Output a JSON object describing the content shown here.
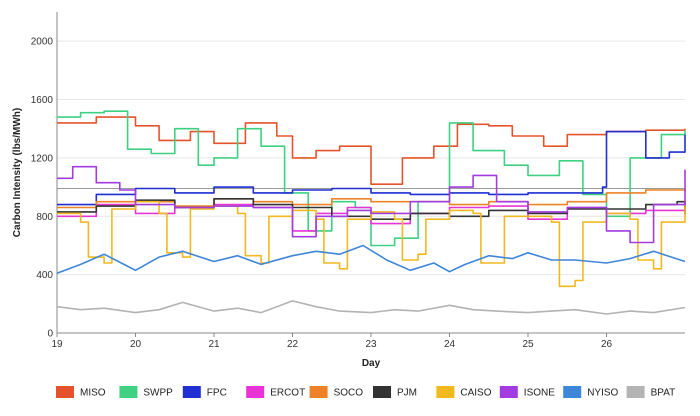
{
  "chart_data": {
    "type": "line",
    "title": "",
    "xlabel": "Day",
    "ylabel": "Carbon Intensity (lbs/MWh)",
    "xlim": [
      19,
      27
    ],
    "ylim": [
      0,
      2200
    ],
    "x_ticks": [
      "19",
      "20",
      "21",
      "22",
      "23",
      "24",
      "25",
      "26"
    ],
    "y_ticks": [
      "0",
      "400",
      "800",
      "1200",
      "1600",
      "2000"
    ],
    "grid": "horizontal",
    "legend_position": "bottom",
    "reference_line": {
      "value": 990,
      "color": "#999999"
    },
    "series": [
      {
        "name": "MISO",
        "color": "#e5532d",
        "shape": "step",
        "points": [
          [
            19.0,
            1440
          ],
          [
            19.5,
            1480
          ],
          [
            20.0,
            1420
          ],
          [
            20.3,
            1320
          ],
          [
            20.7,
            1380
          ],
          [
            21.0,
            1300
          ],
          [
            21.4,
            1440
          ],
          [
            21.8,
            1350
          ],
          [
            22.0,
            1200
          ],
          [
            22.3,
            1250
          ],
          [
            22.6,
            1280
          ],
          [
            23.0,
            1020
          ],
          [
            23.4,
            1200
          ],
          [
            23.8,
            1280
          ],
          [
            24.1,
            1430
          ],
          [
            24.5,
            1420
          ],
          [
            24.8,
            1350
          ],
          [
            25.2,
            1280
          ],
          [
            25.5,
            1360
          ],
          [
            26.0,
            1380
          ],
          [
            26.5,
            1390
          ],
          [
            27.0,
            1400
          ]
        ]
      },
      {
        "name": "SWPP",
        "color": "#3dd181",
        "shape": "step",
        "points": [
          [
            19.0,
            1480
          ],
          [
            19.3,
            1510
          ],
          [
            19.6,
            1520
          ],
          [
            19.9,
            1260
          ],
          [
            20.2,
            1230
          ],
          [
            20.5,
            1400
          ],
          [
            20.8,
            1150
          ],
          [
            21.0,
            1200
          ],
          [
            21.3,
            1400
          ],
          [
            21.6,
            1280
          ],
          [
            21.9,
            960
          ],
          [
            22.2,
            700
          ],
          [
            22.5,
            900
          ],
          [
            22.8,
            860
          ],
          [
            23.0,
            600
          ],
          [
            23.3,
            650
          ],
          [
            23.6,
            900
          ],
          [
            24.0,
            1440
          ],
          [
            24.3,
            1250
          ],
          [
            24.7,
            1150
          ],
          [
            25.0,
            1080
          ],
          [
            25.4,
            1180
          ],
          [
            25.7,
            950
          ],
          [
            26.0,
            800
          ],
          [
            26.3,
            1200
          ],
          [
            26.7,
            1360
          ],
          [
            27.0,
            1390
          ]
        ]
      },
      {
        "name": "FPC",
        "color": "#1f2fd0",
        "shape": "step",
        "points": [
          [
            19.0,
            880
          ],
          [
            19.5,
            950
          ],
          [
            20.0,
            990
          ],
          [
            20.5,
            960
          ],
          [
            21.0,
            1000
          ],
          [
            21.5,
            960
          ],
          [
            22.0,
            980
          ],
          [
            22.5,
            990
          ],
          [
            23.0,
            960
          ],
          [
            23.5,
            950
          ],
          [
            24.0,
            960
          ],
          [
            24.5,
            950
          ],
          [
            25.0,
            960
          ],
          [
            25.5,
            960
          ],
          [
            25.95,
            1000
          ],
          [
            26.0,
            1380
          ],
          [
            26.3,
            1380
          ],
          [
            26.5,
            1200
          ],
          [
            26.8,
            1240
          ],
          [
            27.0,
            1360
          ]
        ]
      },
      {
        "name": "ERCOT",
        "color": "#e834d6",
        "shape": "step",
        "points": [
          [
            19.0,
            800
          ],
          [
            19.5,
            880
          ],
          [
            20.0,
            820
          ],
          [
            20.5,
            860
          ],
          [
            21.0,
            880
          ],
          [
            21.5,
            860
          ],
          [
            22.0,
            700
          ],
          [
            22.3,
            820
          ],
          [
            22.7,
            860
          ],
          [
            23.0,
            750
          ],
          [
            23.5,
            820
          ],
          [
            24.0,
            860
          ],
          [
            24.5,
            870
          ],
          [
            25.0,
            780
          ],
          [
            25.5,
            860
          ],
          [
            26.0,
            820
          ],
          [
            26.5,
            840
          ],
          [
            27.0,
            900
          ]
        ]
      },
      {
        "name": "SOCO",
        "color": "#ed8226",
        "shape": "step",
        "points": [
          [
            19.0,
            860
          ],
          [
            19.5,
            900
          ],
          [
            20.0,
            900
          ],
          [
            20.5,
            870
          ],
          [
            21.0,
            920
          ],
          [
            21.5,
            900
          ],
          [
            22.0,
            880
          ],
          [
            22.5,
            920
          ],
          [
            23.0,
            900
          ],
          [
            23.5,
            900
          ],
          [
            24.0,
            880
          ],
          [
            24.5,
            900
          ],
          [
            25.0,
            880
          ],
          [
            25.5,
            900
          ],
          [
            26.0,
            960
          ],
          [
            26.5,
            980
          ],
          [
            27.0,
            970
          ]
        ]
      },
      {
        "name": "PJM",
        "color": "#333333",
        "shape": "step",
        "points": [
          [
            19.0,
            830
          ],
          [
            19.5,
            870
          ],
          [
            20.0,
            910
          ],
          [
            20.5,
            860
          ],
          [
            21.0,
            920
          ],
          [
            21.5,
            880
          ],
          [
            22.0,
            860
          ],
          [
            22.5,
            800
          ],
          [
            23.0,
            780
          ],
          [
            23.5,
            820
          ],
          [
            24.0,
            800
          ],
          [
            24.5,
            840
          ],
          [
            25.0,
            820
          ],
          [
            25.5,
            850
          ],
          [
            26.0,
            850
          ],
          [
            26.5,
            880
          ],
          [
            26.9,
            900
          ],
          [
            27.0,
            810
          ]
        ]
      },
      {
        "name": "CAISO",
        "color": "#f2b820",
        "shape": "step",
        "points": [
          [
            19.0,
            820
          ],
          [
            19.3,
            760
          ],
          [
            19.4,
            520
          ],
          [
            19.6,
            480
          ],
          [
            19.7,
            850
          ],
          [
            20.0,
            900
          ],
          [
            20.3,
            820
          ],
          [
            20.4,
            550
          ],
          [
            20.6,
            520
          ],
          [
            20.7,
            850
          ],
          [
            21.0,
            870
          ],
          [
            21.3,
            820
          ],
          [
            21.4,
            530
          ],
          [
            21.6,
            480
          ],
          [
            21.7,
            800
          ],
          [
            22.0,
            840
          ],
          [
            22.3,
            780
          ],
          [
            22.4,
            480
          ],
          [
            22.6,
            440
          ],
          [
            22.7,
            780
          ],
          [
            23.0,
            830
          ],
          [
            23.3,
            780
          ],
          [
            23.4,
            500
          ],
          [
            23.6,
            540
          ],
          [
            23.7,
            780
          ],
          [
            24.0,
            840
          ],
          [
            24.3,
            820
          ],
          [
            24.4,
            480
          ],
          [
            24.6,
            480
          ],
          [
            24.7,
            800
          ],
          [
            25.0,
            800
          ],
          [
            25.3,
            760
          ],
          [
            25.4,
            320
          ],
          [
            25.6,
            360
          ],
          [
            25.7,
            760
          ],
          [
            26.0,
            820
          ],
          [
            26.3,
            780
          ],
          [
            26.4,
            500
          ],
          [
            26.6,
            440
          ],
          [
            26.7,
            760
          ],
          [
            27.0,
            880
          ]
        ]
      },
      {
        "name": "ISONE",
        "color": "#a23ce0",
        "shape": "step",
        "points": [
          [
            19.0,
            1060
          ],
          [
            19.2,
            1140
          ],
          [
            19.5,
            1030
          ],
          [
            19.8,
            980
          ],
          [
            20.0,
            880
          ],
          [
            20.5,
            860
          ],
          [
            21.0,
            870
          ],
          [
            21.5,
            860
          ],
          [
            22.0,
            660
          ],
          [
            22.3,
            800
          ],
          [
            22.7,
            840
          ],
          [
            23.0,
            820
          ],
          [
            23.5,
            900
          ],
          [
            24.0,
            1000
          ],
          [
            24.3,
            1080
          ],
          [
            24.6,
            900
          ],
          [
            25.0,
            830
          ],
          [
            25.5,
            860
          ],
          [
            26.0,
            700
          ],
          [
            26.3,
            620
          ],
          [
            26.6,
            880
          ],
          [
            27.0,
            1120
          ]
        ]
      },
      {
        "name": "NYISO",
        "color": "#3f86d9",
        "shape": "line",
        "points": [
          [
            19.0,
            410
          ],
          [
            19.3,
            470
          ],
          [
            19.6,
            540
          ],
          [
            20.0,
            430
          ],
          [
            20.3,
            520
          ],
          [
            20.6,
            560
          ],
          [
            21.0,
            490
          ],
          [
            21.3,
            530
          ],
          [
            21.6,
            470
          ],
          [
            22.0,
            530
          ],
          [
            22.3,
            560
          ],
          [
            22.6,
            540
          ],
          [
            22.9,
            600
          ],
          [
            23.2,
            500
          ],
          [
            23.5,
            430
          ],
          [
            23.8,
            480
          ],
          [
            24.0,
            420
          ],
          [
            24.2,
            470
          ],
          [
            24.5,
            530
          ],
          [
            24.8,
            510
          ],
          [
            25.0,
            550
          ],
          [
            25.3,
            500
          ],
          [
            25.6,
            500
          ],
          [
            26.0,
            480
          ],
          [
            26.3,
            510
          ],
          [
            26.6,
            560
          ],
          [
            27.0,
            490
          ]
        ]
      },
      {
        "name": "BPAT",
        "color": "#b3b3b3",
        "shape": "line",
        "points": [
          [
            19.0,
            180
          ],
          [
            19.3,
            160
          ],
          [
            19.6,
            170
          ],
          [
            20.0,
            140
          ],
          [
            20.3,
            160
          ],
          [
            20.6,
            210
          ],
          [
            21.0,
            150
          ],
          [
            21.3,
            170
          ],
          [
            21.6,
            140
          ],
          [
            22.0,
            220
          ],
          [
            22.3,
            180
          ],
          [
            22.6,
            150
          ],
          [
            23.0,
            140
          ],
          [
            23.3,
            160
          ],
          [
            23.6,
            150
          ],
          [
            24.0,
            190
          ],
          [
            24.3,
            160
          ],
          [
            24.6,
            150
          ],
          [
            25.0,
            140
          ],
          [
            25.3,
            150
          ],
          [
            25.6,
            160
          ],
          [
            26.0,
            130
          ],
          [
            26.3,
            150
          ],
          [
            26.6,
            140
          ],
          [
            27.0,
            175
          ]
        ]
      }
    ]
  }
}
